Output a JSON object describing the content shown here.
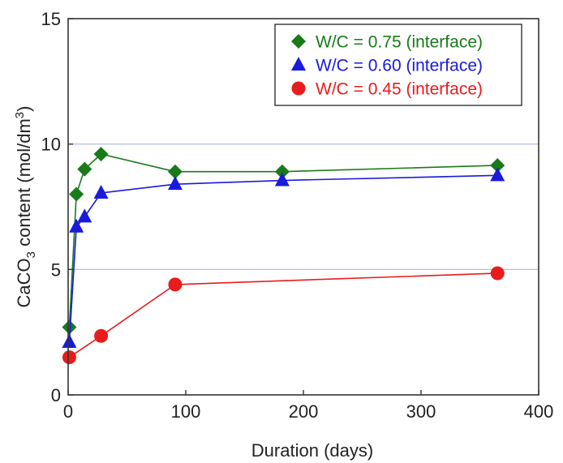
{
  "chart_data": {
    "type": "line",
    "title": "",
    "xlabel": "Duration (days)",
    "ylabel": {
      "prefix": "CaCO",
      "sub": "3",
      "middle": " content (mol/dm",
      "sup": "3",
      "suffix": ")"
    },
    "xlim": [
      0,
      400
    ],
    "ylim": [
      0,
      15
    ],
    "xticks": [
      {
        "value": 0,
        "label": "0"
      },
      {
        "value": 100,
        "label": "100"
      },
      {
        "value": 200,
        "label": "200"
      },
      {
        "value": 300,
        "label": "300"
      },
      {
        "value": 400,
        "label": "400"
      }
    ],
    "yticks": [
      {
        "value": 0,
        "label": "0"
      },
      {
        "value": 5,
        "label": "5"
      },
      {
        "value": 10,
        "label": "10"
      },
      {
        "value": 15,
        "label": "15"
      }
    ],
    "gridlines_y": [
      5,
      10
    ],
    "grid_color": "#aab4ee",
    "legend_position": "top-right",
    "series": [
      {
        "name": "W/C = 0.75 (interface)",
        "color": "#1a7a1a",
        "marker": "diamond",
        "x": [
          1,
          7,
          14,
          28,
          91,
          182,
          365
        ],
        "y": [
          2.7,
          8.0,
          9.0,
          9.6,
          8.9,
          8.9,
          9.15
        ]
      },
      {
        "name": "W/C = 0.60 (interface)",
        "color": "#1a1adc",
        "marker": "triangle",
        "x": [
          1,
          7,
          14,
          28,
          91,
          182,
          365
        ],
        "y": [
          2.1,
          6.7,
          7.1,
          8.05,
          8.4,
          8.55,
          8.75
        ]
      },
      {
        "name": "W/C = 0.45 (interface)",
        "color": "#e81c1c",
        "marker": "circle",
        "x": [
          1,
          28,
          91,
          365
        ],
        "y": [
          1.5,
          2.35,
          4.4,
          4.85
        ]
      }
    ]
  }
}
